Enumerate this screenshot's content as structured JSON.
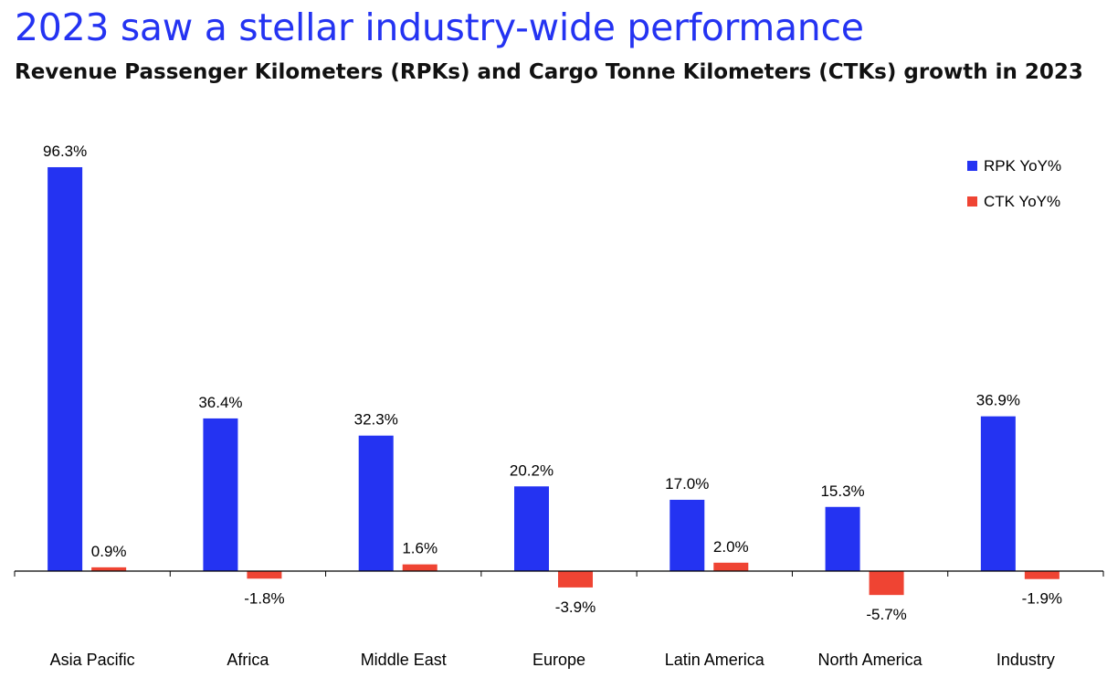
{
  "header": {
    "headline": "2023 saw a stellar industry-wide performance",
    "subtitle": "Revenue Passenger Kilometers (RPKs) and Cargo Tonne Kilometers (CTKs) growth in 2023"
  },
  "colors": {
    "rpk": "#2433f2",
    "ctk": "#ef4433",
    "axis": "#000000",
    "text": "#000000"
  },
  "chart_data": {
    "type": "bar",
    "title": "",
    "xlabel": "",
    "ylabel": "",
    "categories": [
      "Asia Pacific",
      "Africa",
      "Middle East",
      "Europe",
      "Latin America",
      "North America",
      "Industry"
    ],
    "series": [
      {
        "name": "RPK YoY%",
        "values": [
          96.3,
          36.4,
          32.3,
          20.2,
          17.0,
          15.3,
          36.9
        ],
        "labels": [
          "96.3%",
          "36.4%",
          "32.3%",
          "20.2%",
          "17.0%",
          "15.3%",
          "36.9%"
        ]
      },
      {
        "name": "CTK YoY%",
        "values": [
          0.9,
          -1.8,
          1.6,
          -3.9,
          2.0,
          -5.7,
          -1.9
        ],
        "labels": [
          "0.9%",
          "-1.8%",
          "1.6%",
          "-3.9%",
          "2.0%",
          "-5.7%",
          "-1.9%"
        ]
      }
    ],
    "grid": false,
    "legend": "top-right"
  }
}
